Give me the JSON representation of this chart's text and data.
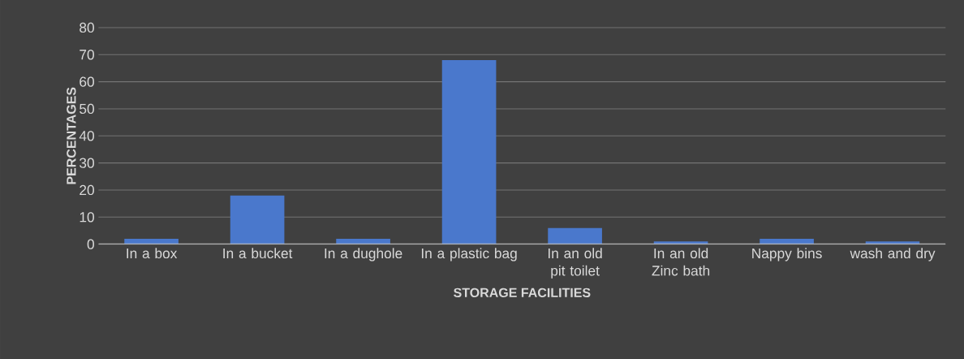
{
  "chart_data": {
    "type": "bar",
    "xlabel": "STORAGE FACILITIES",
    "ylabel": "PERCENTAGES",
    "categories": [
      "In a box",
      "In a bucket",
      "In a dughole",
      "In a plastic bag",
      "In an  old pit toilet",
      "In an old Zinc bath",
      "Nappy bins",
      "wash and dry"
    ],
    "values": [
      2,
      18,
      2,
      68,
      6,
      1,
      2,
      1
    ],
    "color": "#4a78cc",
    "ylim": [
      0,
      80
    ],
    "yticks": [
      0,
      10,
      20,
      30,
      40,
      50,
      60,
      70,
      80
    ],
    "grid": "y"
  }
}
